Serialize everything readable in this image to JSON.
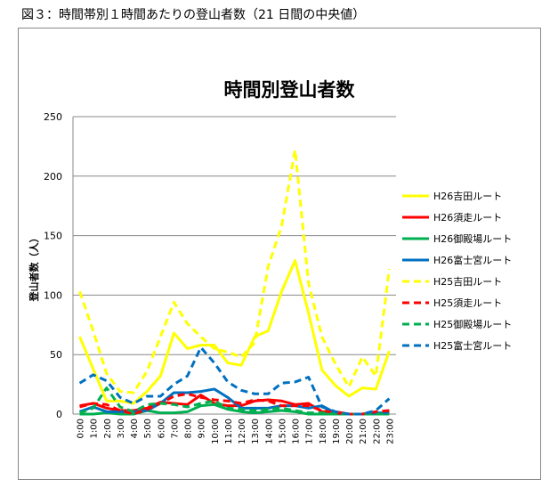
{
  "caption": "図３：時間帯別１時間あたりの登山者数（21 日間の中央値）",
  "chart_data": {
    "type": "line",
    "title": "時間別登山者数",
    "xlabel": "",
    "ylabel": "登山者数（人）",
    "ylim": [
      0,
      250
    ],
    "yticks": [
      0,
      50,
      100,
      150,
      200,
      250
    ],
    "grid": true,
    "legend": "right",
    "categories": [
      "0:00",
      "1:00",
      "2:00",
      "3:00",
      "4:00",
      "5:00",
      "6:00",
      "7:00",
      "8:00",
      "9:00",
      "10:00",
      "11:00",
      "12:00",
      "13:00",
      "14:00",
      "15:00",
      "16:00",
      "17:00",
      "18:00",
      "19:00",
      "20:00",
      "21:00",
      "22:00",
      "23:00"
    ],
    "series": [
      {
        "name": "H26吉田ルート",
        "color": "#ffff00",
        "dash": false,
        "values": [
          65,
          38,
          11,
          11,
          9,
          19,
          32,
          68,
          55,
          58,
          58,
          43,
          41,
          65,
          70,
          103,
          129,
          85,
          37,
          24,
          15,
          22,
          21,
          53
        ]
      },
      {
        "name": "H26須走ルート",
        "color": "#ff0000",
        "dash": false,
        "values": [
          7,
          9,
          5,
          3,
          3,
          5,
          10,
          9,
          8,
          16,
          9,
          7,
          7,
          11,
          12,
          11,
          8,
          9,
          2,
          2,
          0,
          0,
          0,
          2
        ]
      },
      {
        "name": "H26御殿場ルート",
        "color": "#00b050",
        "dash": false,
        "values": [
          0,
          0,
          1,
          0,
          0,
          3,
          1,
          1,
          2,
          7,
          8,
          4,
          2,
          1,
          2,
          3,
          2,
          0,
          0,
          0,
          0,
          0,
          0,
          0
        ]
      },
      {
        "name": "H26富士宮ルート",
        "color": "#0070c0",
        "dash": false,
        "values": [
          2,
          6,
          2,
          2,
          2,
          3,
          9,
          18,
          18,
          19,
          21,
          14,
          5,
          5,
          5,
          7,
          7,
          5,
          7,
          1,
          0,
          0,
          1,
          1
        ]
      },
      {
        "name": "H25吉田ルート",
        "color": "#ffff00",
        "dash": true,
        "values": [
          103,
          70,
          34,
          19,
          18,
          36,
          65,
          94,
          76,
          65,
          55,
          52,
          48,
          60,
          124,
          158,
          222,
          110,
          65,
          42,
          23,
          48,
          32,
          122
        ]
      },
      {
        "name": "H25須走ルート",
        "color": "#ff0000",
        "dash": true,
        "values": [
          6,
          9,
          8,
          3,
          0,
          4,
          9,
          15,
          17,
          14,
          12,
          11,
          9,
          12,
          11,
          7,
          7,
          7,
          3,
          1,
          0,
          0,
          2,
          3
        ]
      },
      {
        "name": "H25御殿場ルート",
        "color": "#00b050",
        "dash": true,
        "values": [
          1,
          5,
          22,
          6,
          2,
          8,
          9,
          8,
          6,
          9,
          11,
          5,
          4,
          3,
          4,
          5,
          3,
          1,
          1,
          0,
          0,
          0,
          0,
          0
        ]
      },
      {
        "name": "H25富士宮ルート",
        "color": "#0070c0",
        "dash": true,
        "values": [
          26,
          33,
          28,
          14,
          9,
          15,
          15,
          25,
          32,
          56,
          43,
          27,
          20,
          17,
          17,
          26,
          27,
          31,
          6,
          2,
          0,
          0,
          3,
          13
        ]
      }
    ]
  }
}
